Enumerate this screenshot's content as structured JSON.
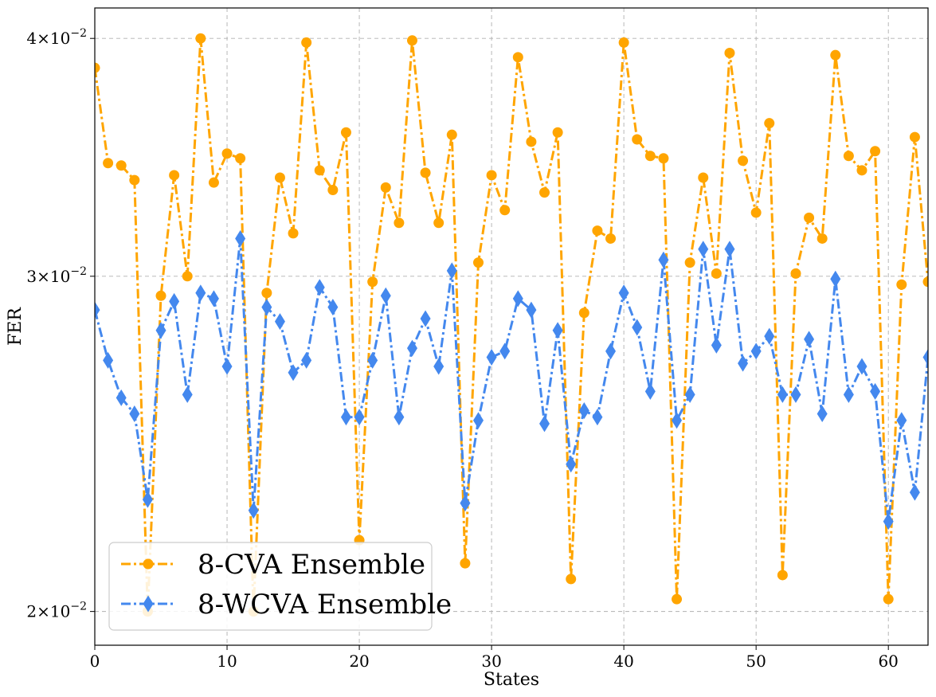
{
  "chart_data": {
    "type": "line",
    "xlabel": "States",
    "ylabel": "FER",
    "xlim": [
      0,
      63
    ],
    "ylim": [
      0.0192,
      0.0415
    ],
    "yscale": "log",
    "grid": true,
    "legend_position": "bottom-left",
    "x_ticks": [
      {
        "value": 0,
        "label": "0"
      },
      {
        "value": 10,
        "label": "10"
      },
      {
        "value": 20,
        "label": "20"
      },
      {
        "value": 30,
        "label": "30"
      },
      {
        "value": 40,
        "label": "40"
      },
      {
        "value": 50,
        "label": "50"
      },
      {
        "value": 60,
        "label": "60"
      }
    ],
    "y_ticks": [
      {
        "value": 0.02,
        "mantissa": "2",
        "exponent": "−2"
      },
      {
        "value": 0.03,
        "mantissa": "3",
        "exponent": "−2"
      },
      {
        "value": 0.04,
        "mantissa": "4",
        "exponent": "−2"
      }
    ],
    "series": [
      {
        "name": "8-CVA Ensemble",
        "color": "#ffa500",
        "marker": "circle",
        "values": [
          0.0386,
          0.0344,
          0.0343,
          0.0337,
          0.02,
          0.0293,
          0.0339,
          0.03,
          0.04,
          0.0336,
          0.0348,
          0.0346,
          0.02,
          0.0294,
          0.0338,
          0.0316,
          0.0398,
          0.0341,
          0.0333,
          0.0357,
          0.0218,
          0.0298,
          0.0334,
          0.032,
          0.0399,
          0.034,
          0.032,
          0.0356,
          0.0212,
          0.0305,
          0.0339,
          0.0325,
          0.0391,
          0.0353,
          0.0332,
          0.0357,
          0.0208,
          0.0287,
          0.0317,
          0.0314,
          0.0398,
          0.0354,
          0.0347,
          0.0346,
          0.0203,
          0.0305,
          0.0338,
          0.0301,
          0.0393,
          0.0345,
          0.0324,
          0.0361,
          0.0209,
          0.0301,
          0.0322,
          0.0314,
          0.0392,
          0.0347,
          0.0341,
          0.0349,
          0.0203,
          0.0297,
          0.0355,
          0.0298
        ]
      },
      {
        "name": "8-WCVA Ensemble",
        "color": "#4488ee",
        "marker": "diamond",
        "values": [
          0.0288,
          0.0271,
          0.0259,
          0.0254,
          0.0229,
          0.0281,
          0.0291,
          0.026,
          0.0294,
          0.0292,
          0.0269,
          0.0314,
          0.0226,
          0.0289,
          0.0284,
          0.0267,
          0.0271,
          0.0296,
          0.0289,
          0.0253,
          0.0253,
          0.0271,
          0.0293,
          0.0253,
          0.0275,
          0.0285,
          0.0269,
          0.0302,
          0.0228,
          0.0252,
          0.0272,
          0.0274,
          0.0292,
          0.0288,
          0.0251,
          0.0281,
          0.0239,
          0.0255,
          0.0253,
          0.0274,
          0.0294,
          0.0282,
          0.0261,
          0.0306,
          0.0252,
          0.026,
          0.031,
          0.0276,
          0.031,
          0.027,
          0.0274,
          0.0279,
          0.026,
          0.026,
          0.0278,
          0.0254,
          0.0299,
          0.026,
          0.0269,
          0.0261,
          0.0223,
          0.0252,
          0.0231,
          0.0272
        ]
      }
    ]
  }
}
